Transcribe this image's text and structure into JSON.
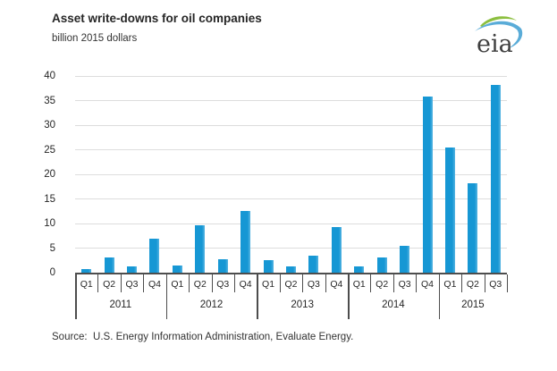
{
  "header": {
    "title": "Asset write-downs for oil companies",
    "subtitle": "billion 2015 dollars",
    "logo_text": "eia"
  },
  "chart_data": {
    "type": "bar",
    "title": "Asset write-downs for oil companies",
    "ylabel": "billion 2015 dollars",
    "xlabel": "",
    "ylim": [
      0,
      40
    ],
    "yticks": [
      0,
      5,
      10,
      15,
      20,
      25,
      30,
      35,
      40
    ],
    "grid": "horizontal",
    "legend": "none",
    "bar_color": "#1697d4",
    "categories": [
      "Q1",
      "Q2",
      "Q3",
      "Q4",
      "Q1",
      "Q2",
      "Q3",
      "Q4",
      "Q1",
      "Q2",
      "Q3",
      "Q4",
      "Q1",
      "Q2",
      "Q3",
      "Q4",
      "Q1",
      "Q2",
      "Q3"
    ],
    "year_groups": [
      {
        "label": "2011",
        "quarters": 4
      },
      {
        "label": "2012",
        "quarters": 4
      },
      {
        "label": "2013",
        "quarters": 4
      },
      {
        "label": "2014",
        "quarters": 4
      },
      {
        "label": "2015",
        "quarters": 3
      }
    ],
    "values": [
      0.8,
      3.1,
      1.2,
      6.9,
      1.4,
      9.6,
      2.8,
      12.5,
      2.6,
      1.2,
      3.5,
      9.2,
      1.3,
      3.0,
      5.5,
      35.9,
      25.4,
      18.1,
      38.2
    ]
  },
  "source": "Source:  U.S. Energy Information Administration, Evaluate Energy."
}
